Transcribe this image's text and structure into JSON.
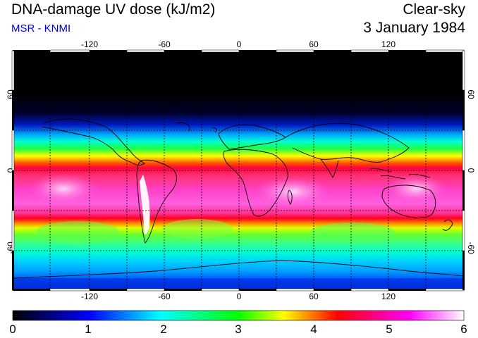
{
  "header": {
    "title": "DNA-damage UV dose (kJ/m2)",
    "source": "MSR - KNMI",
    "condition": "Clear-sky",
    "date": "3 January 1984"
  },
  "map": {
    "lon_ticks_top": [
      "-120",
      "-60",
      "0",
      "60",
      "120"
    ],
    "lon_ticks_bottom": [
      "-120",
      "-60",
      "0",
      "60",
      "120"
    ],
    "lat_ticks_left": [
      "60",
      "0",
      "-60"
    ],
    "lat_ticks_right": [
      "60",
      "0",
      "-60"
    ]
  },
  "colorbar": {
    "labels": [
      "0",
      "1",
      "2",
      "3",
      "4",
      "5",
      "6"
    ],
    "colors": [
      "#000000",
      "#0000ff",
      "#00ffff",
      "#00ff00",
      "#ffff00",
      "#ff0000",
      "#ff00ff",
      "#ffffff"
    ]
  }
}
